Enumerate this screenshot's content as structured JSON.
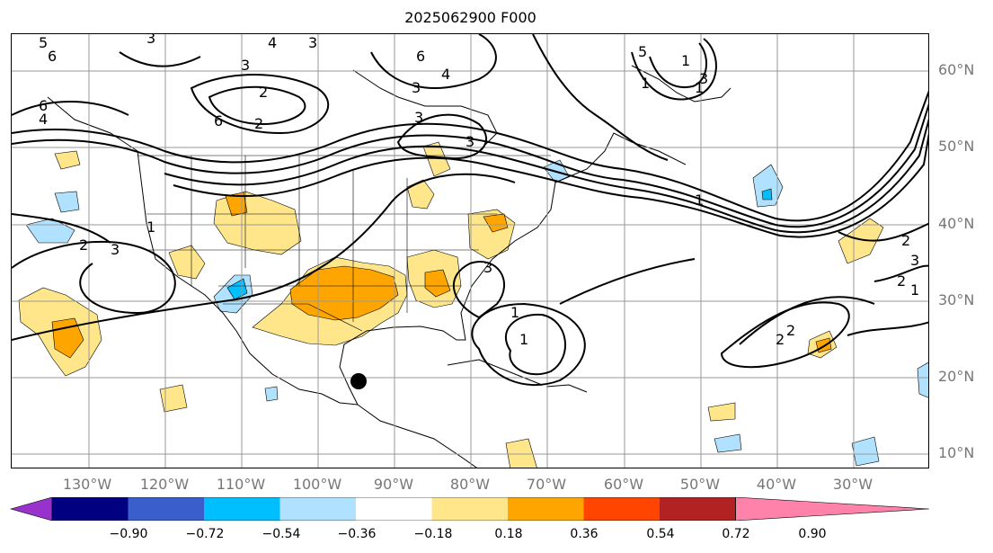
{
  "title": "2025062900 F000",
  "lat_labels": [
    "60°N",
    "50°N",
    "40°N",
    "30°N",
    "20°N",
    "10°N"
  ],
  "lon_labels": [
    "130°W",
    "120°W",
    "110°W",
    "100°W",
    "90°W",
    "80°W",
    "70°W",
    "60°W",
    "50°W",
    "40°W",
    "30°W"
  ],
  "contour_labels": [
    "5",
    "3",
    "3",
    "4",
    "3",
    "6",
    "6",
    "3",
    "4",
    "3",
    "3",
    "6",
    "4",
    "1",
    "3",
    "5",
    "1",
    "1",
    "1",
    "2",
    "2",
    "3",
    "2",
    "1",
    "1",
    "2",
    "1",
    "3",
    "2",
    "2",
    "6",
    "3",
    "1",
    "2"
  ],
  "colorbar": {
    "ticks": [
      "−0.90",
      "−0.72",
      "−0.54",
      "−0.36",
      "−0.18",
      "0.18",
      "0.36",
      "0.54",
      "0.72",
      "0.90"
    ],
    "colors": [
      "#9932cc",
      "#000080",
      "#3a5fcd",
      "#00bfff",
      "#b0e2ff",
      "#ffffff",
      "#ffe68a",
      "#ffa500",
      "#ff4500",
      "#b22222",
      "#ff82ab"
    ]
  },
  "colors": {
    "contour": "#000000",
    "grid": "#999999",
    "axis_label": "#777777"
  },
  "marker": "storm-center-dot"
}
